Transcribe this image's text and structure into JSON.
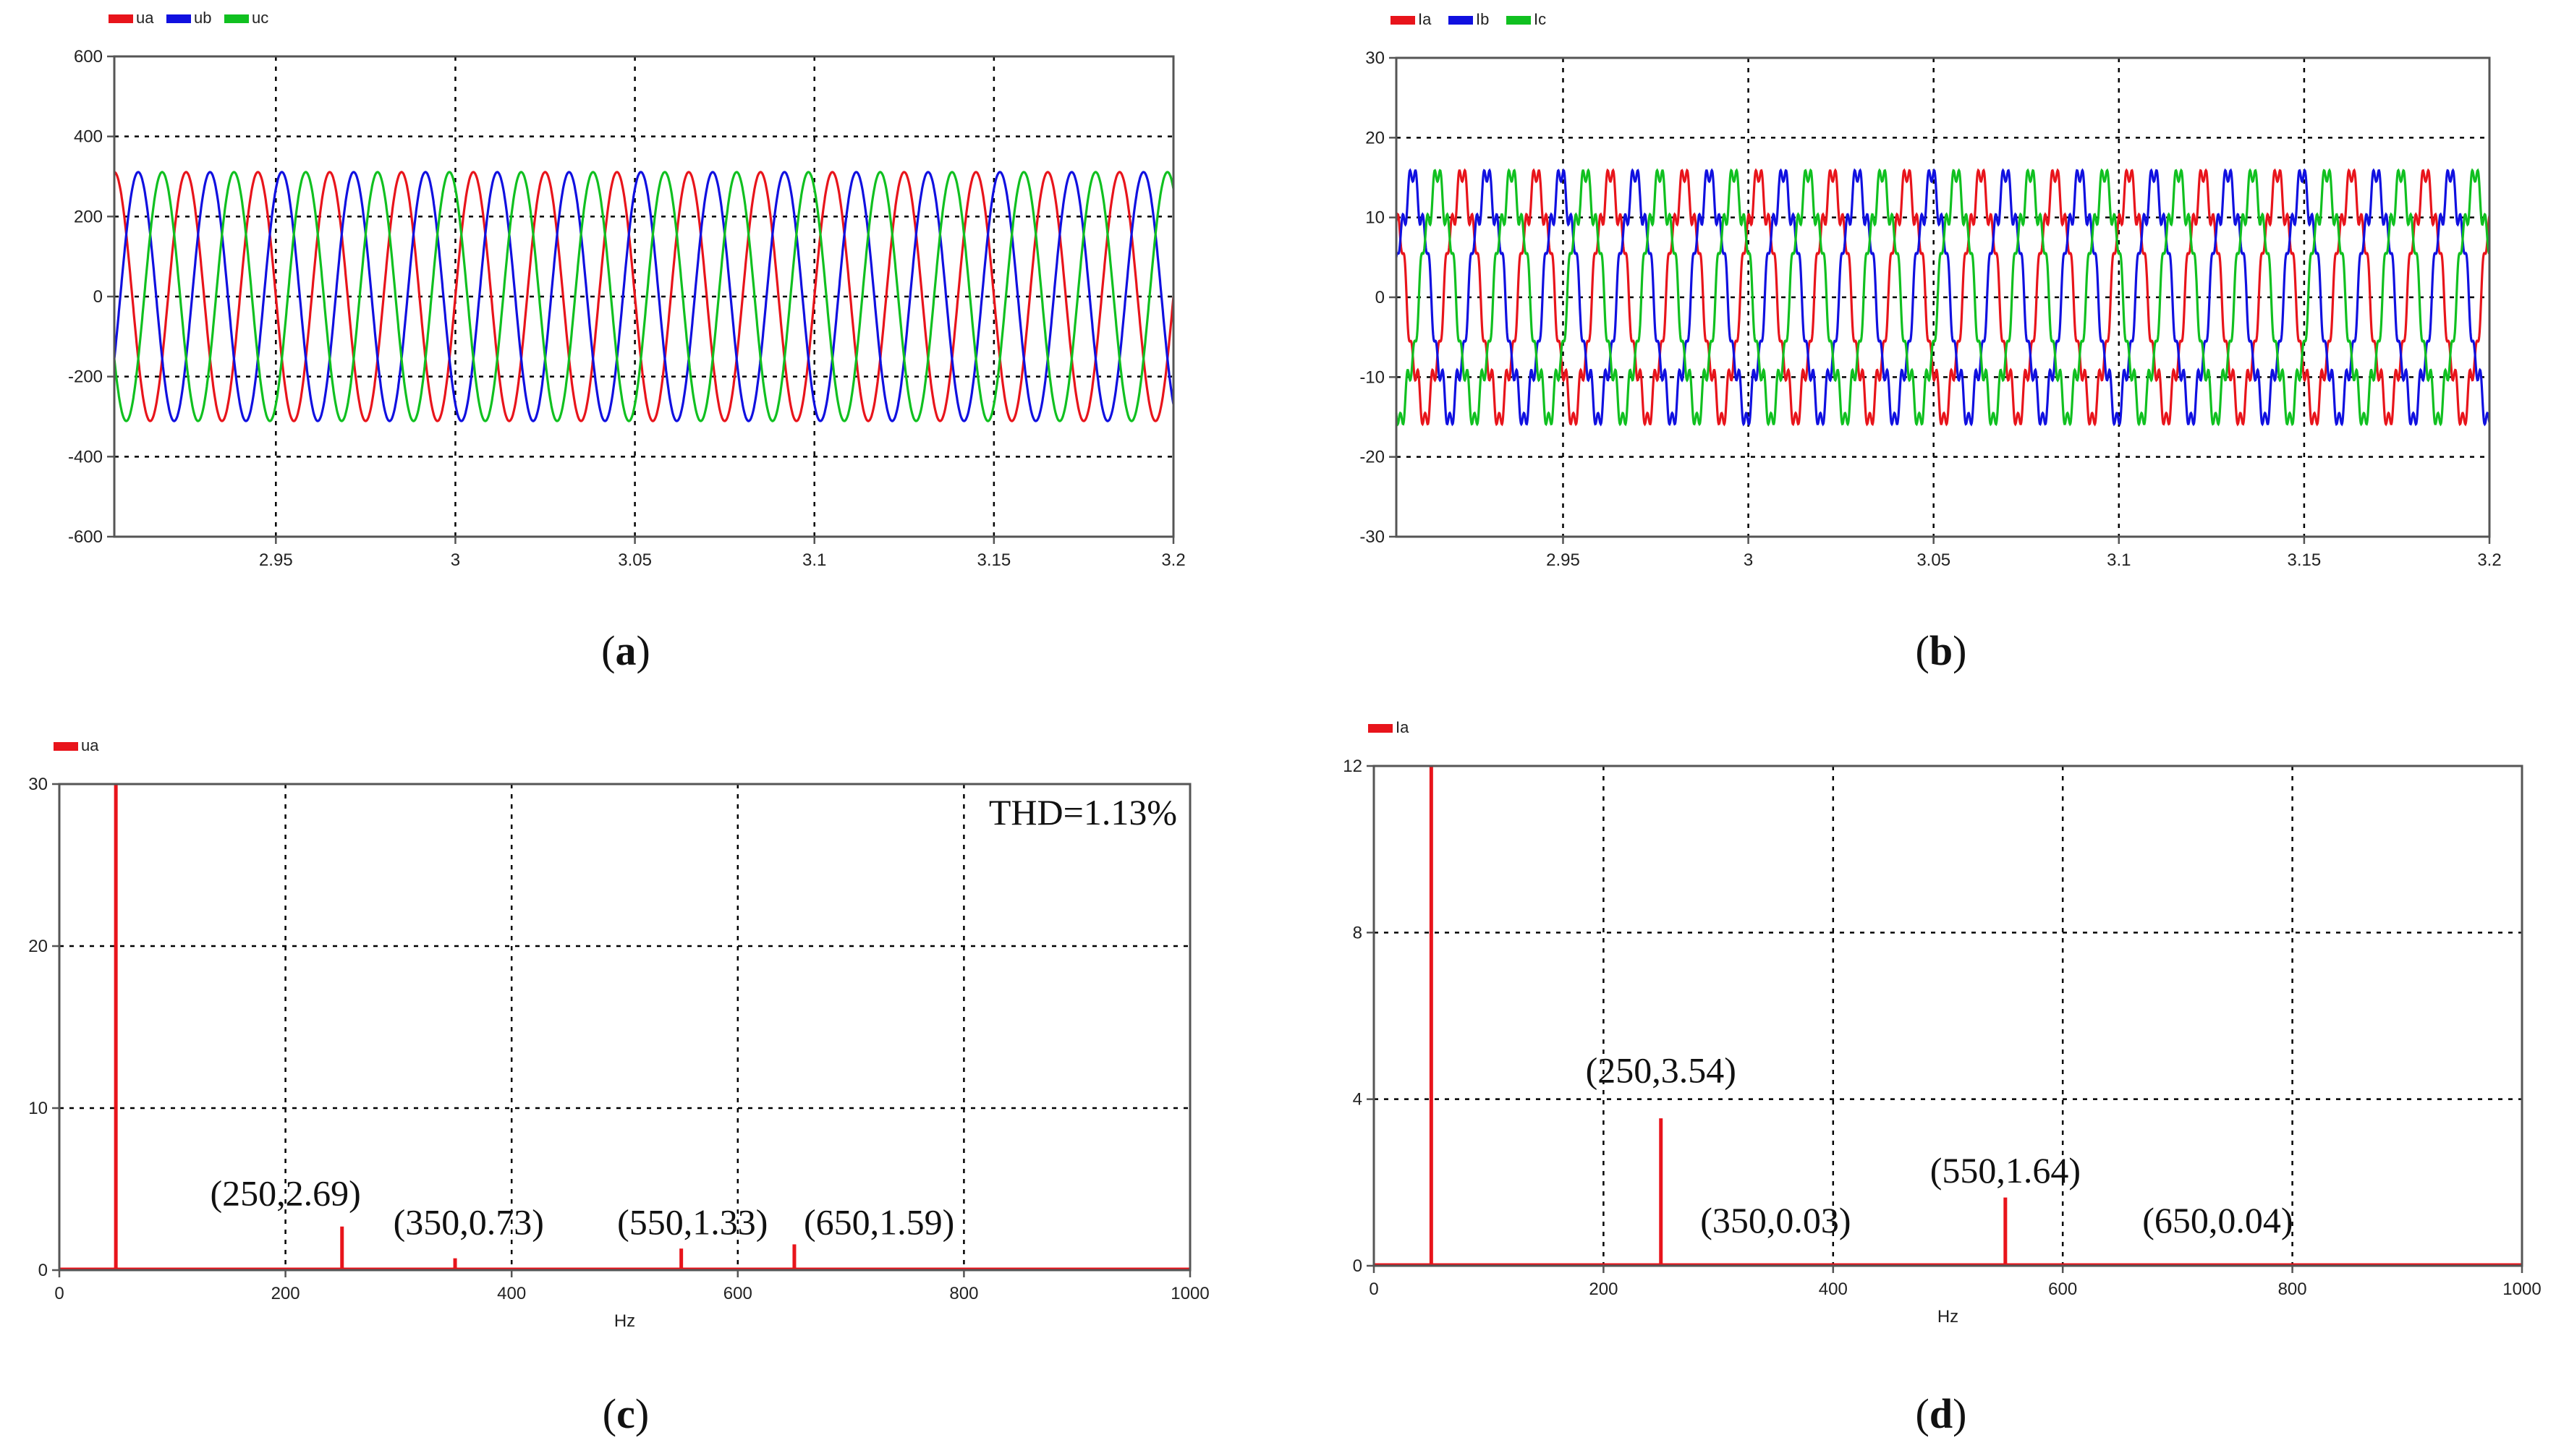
{
  "colors": {
    "red": "#e8141b",
    "blue": "#1010e0",
    "green": "#10c020"
  },
  "chart_data": [
    {
      "id": "a",
      "type": "line",
      "caption": "a",
      "xlim": [
        2.905,
        3.2
      ],
      "ylim": [
        -600,
        600
      ],
      "xticks": [
        "2.95",
        "3",
        "3.05",
        "3.1",
        "3.15",
        "3.2"
      ],
      "xtick_values": [
        2.95,
        3.0,
        3.05,
        3.1,
        3.15,
        3.2
      ],
      "yticks": [
        "600",
        "400",
        "200",
        "0",
        "-200",
        "-400",
        "-600"
      ],
      "ytick_values": [
        600,
        400,
        200,
        0,
        -200,
        -400,
        -600
      ],
      "grid": true,
      "legend_position": "top-left",
      "series": [
        {
          "name": "ua",
          "color": "#e8141b",
          "amplitude": 311,
          "frequency_hz": 50,
          "phase_deg": 0
        },
        {
          "name": "ub",
          "color": "#1010e0",
          "amplitude": 311,
          "frequency_hz": 50,
          "phase_deg": -120
        },
        {
          "name": "uc",
          "color": "#10c020",
          "amplitude": 311,
          "frequency_hz": 50,
          "phase_deg": 120
        }
      ]
    },
    {
      "id": "b",
      "type": "line",
      "caption": "b",
      "xlim": [
        2.905,
        3.2
      ],
      "ylim": [
        -30,
        30
      ],
      "xticks": [
        "2.95",
        "3",
        "3.05",
        "3.1",
        "3.15",
        "3.2"
      ],
      "xtick_values": [
        2.95,
        3.0,
        3.05,
        3.1,
        3.15,
        3.2
      ],
      "yticks": [
        "30",
        "20",
        "10",
        "0",
        "-10",
        "-20",
        "-30"
      ],
      "ytick_values": [
        30,
        20,
        10,
        0,
        -10,
        -20,
        -30
      ],
      "grid": true,
      "legend_position": "top-left",
      "harmonics": [
        {
          "order": 5,
          "relative_amplitude": 0.1
        },
        {
          "order": 11,
          "relative_amplitude": 0.1
        }
      ],
      "series": [
        {
          "name": "Ia",
          "color": "#e8141b",
          "amplitude": 14.5,
          "frequency_hz": 50,
          "phase_deg": 40
        },
        {
          "name": "Ib",
          "color": "#1010e0",
          "amplitude": 14.5,
          "frequency_hz": 50,
          "phase_deg": -80
        },
        {
          "name": "Ic",
          "color": "#10c020",
          "amplitude": 14.5,
          "frequency_hz": 50,
          "phase_deg": 160
        }
      ]
    },
    {
      "id": "c",
      "type": "bar",
      "caption": "c",
      "xlabel": "Hz",
      "xlim": [
        0,
        1000
      ],
      "ylim": [
        0,
        30
      ],
      "xticks": [
        "0",
        "200",
        "400",
        "600",
        "800",
        "1000"
      ],
      "xtick_values": [
        0,
        200,
        400,
        600,
        800,
        1000
      ],
      "yticks": [
        "30",
        "20",
        "10",
        "0"
      ],
      "ytick_values": [
        30,
        20,
        10,
        0
      ],
      "grid": true,
      "legend_position": "top-left",
      "series": [
        {
          "name": "ua",
          "color": "#e8141b",
          "points": [
            [
              50,
              30
            ],
            [
              250,
              2.69
            ],
            [
              350,
              0.73
            ],
            [
              550,
              1.33
            ],
            [
              650,
              1.59
            ]
          ]
        }
      ],
      "annotations": [
        {
          "text": "THD=1.13%",
          "x": 1000,
          "y": 27.5,
          "anchor": "end"
        },
        {
          "text": "(250,2.69)",
          "x": 200,
          "y": 4.0,
          "anchor": "middle"
        },
        {
          "text": "(350,0.73)",
          "x": 362,
          "y": 2.2,
          "anchor": "middle"
        },
        {
          "text": "(550,1.33)",
          "x": 560,
          "y": 2.2,
          "anchor": "middle"
        },
        {
          "text": "(650,1.59)",
          "x": 725,
          "y": 2.2,
          "anchor": "middle"
        }
      ]
    },
    {
      "id": "d",
      "type": "bar",
      "caption": "d",
      "xlabel": "Hz",
      "xlim": [
        0,
        1000
      ],
      "ylim": [
        0,
        12
      ],
      "xticks": [
        "0",
        "200",
        "400",
        "600",
        "800",
        "1000"
      ],
      "xtick_values": [
        0,
        200,
        400,
        600,
        800,
        1000
      ],
      "yticks": [
        "12",
        "8",
        "4",
        "0"
      ],
      "ytick_values": [
        12,
        8,
        4,
        0
      ],
      "grid": true,
      "legend_position": "top-left",
      "series": [
        {
          "name": "Ia",
          "color": "#e8141b",
          "points": [
            [
              50,
              12
            ],
            [
              250,
              3.54
            ],
            [
              350,
              0.03
            ],
            [
              550,
              1.64
            ],
            [
              650,
              0.04
            ]
          ]
        }
      ],
      "annotations": [
        {
          "text": "(250,3.54)",
          "x": 250,
          "y": 4.4,
          "anchor": "middle"
        },
        {
          "text": "(350,0.03)",
          "x": 350,
          "y": 0.8,
          "anchor": "middle"
        },
        {
          "text": "(550,1.64)",
          "x": 550,
          "y": 2.0,
          "anchor": "middle"
        },
        {
          "text": "(650,0.04)",
          "x": 735,
          "y": 0.8,
          "anchor": "middle"
        }
      ]
    }
  ]
}
